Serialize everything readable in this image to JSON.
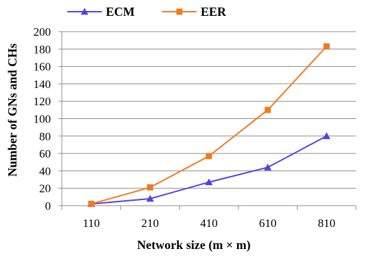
{
  "chart_data": {
    "type": "line",
    "title": "",
    "xlabel": "Network size (m × m)",
    "ylabel": "Number of GNs and CHs",
    "categories": [
      "110",
      "210",
      "410",
      "610",
      "810"
    ],
    "ylim": [
      0,
      200
    ],
    "yticks": [
      0,
      20,
      40,
      60,
      80,
      100,
      120,
      140,
      160,
      180,
      200
    ],
    "grid": "horizontal",
    "legend_position": "top-left",
    "series": [
      {
        "name": "ECM",
        "values": [
          2,
          8,
          27,
          44,
          80
        ],
        "color": "#5a3ce6",
        "marker": "triangle"
      },
      {
        "name": "EER",
        "values": [
          2,
          21,
          57,
          110,
          183
        ],
        "color": "#f07a1e",
        "marker": "square"
      }
    ]
  }
}
